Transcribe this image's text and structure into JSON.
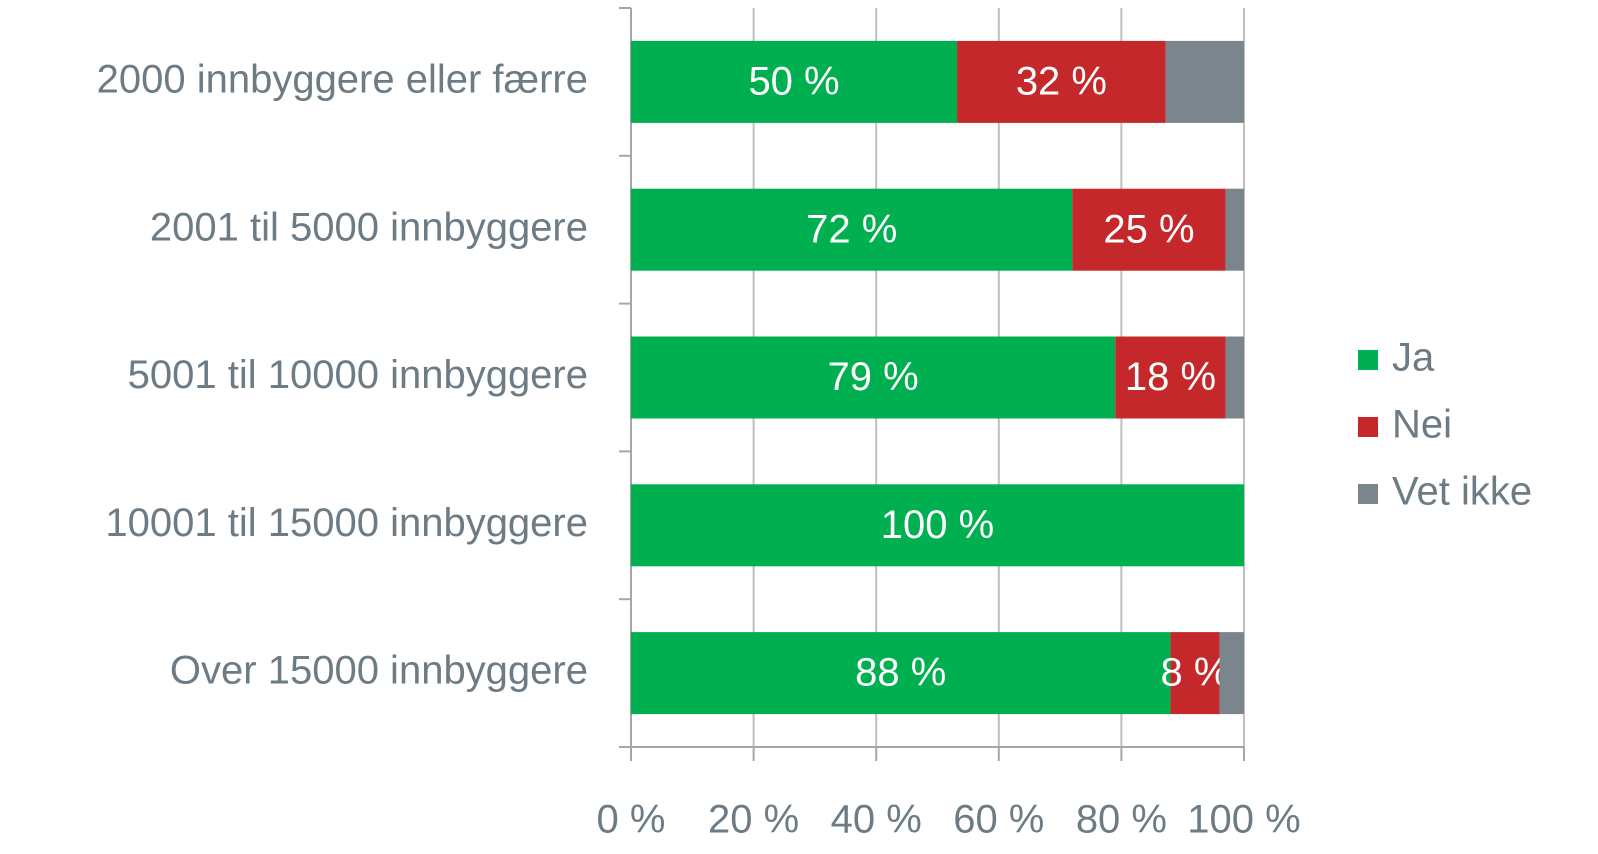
{
  "chart_data": {
    "type": "bar",
    "orientation": "horizontal",
    "stacking": "percent",
    "categories": [
      "2000 innbyggere eller færre",
      "2001 til 5000 innbyggere",
      "5001 til 10000 innbyggere",
      "10001 til 15000 innbyggere",
      "Over 15000 innbyggere"
    ],
    "series": [
      {
        "name": "Ja",
        "color": "#00b050",
        "values": [
          50,
          72,
          79,
          100,
          88
        ],
        "value_labels": [
          "50 %",
          "72 %",
          "79 %",
          "100 %",
          "88 %"
        ]
      },
      {
        "name": "Nei",
        "color": "#c5282a",
        "values": [
          32,
          25,
          18,
          0,
          8
        ],
        "value_labels": [
          "32 %",
          "25 %",
          "18 %",
          null,
          "8 %"
        ]
      },
      {
        "name": "Vet ikke",
        "color": "#7b868c",
        "values": [
          12,
          3,
          3,
          0,
          4
        ]
      }
    ],
    "xlim": [
      0,
      100
    ],
    "xticks": [
      {
        "value": 0,
        "label": "0 %"
      },
      {
        "value": 20,
        "label": "20 %"
      },
      {
        "value": 40,
        "label": "40 %"
      },
      {
        "value": 60,
        "label": "60 %"
      },
      {
        "value": 80,
        "label": "80 %"
      },
      {
        "value": 100,
        "label": "100 %"
      }
    ],
    "grid": true,
    "legend": "right"
  }
}
